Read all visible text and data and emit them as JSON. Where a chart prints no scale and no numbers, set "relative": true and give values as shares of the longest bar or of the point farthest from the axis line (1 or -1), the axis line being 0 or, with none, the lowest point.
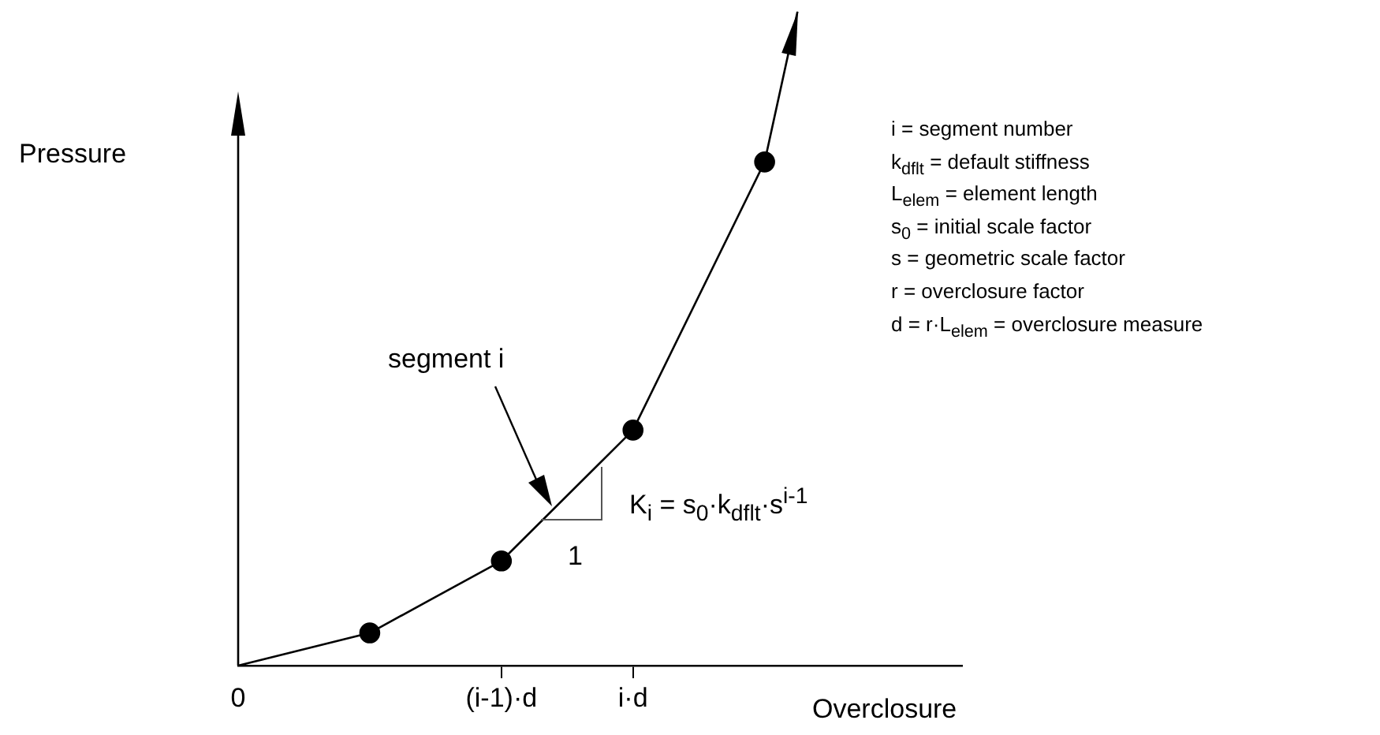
{
  "chart_data": {
    "type": "line",
    "relative": true,
    "categories": [
      "0",
      null,
      null,
      null,
      null,
      null,
      null,
      null,
      "(i-1)·d",
      null,
      null,
      null,
      "i·d",
      null,
      null,
      null,
      null,
      null,
      null,
      null,
      null,
      null,
      null
    ],
    "series": [
      {
        "color": "#000000",
        "values": [
          0,
          null,
          null,
          null,
          0.05,
          null,
          null,
          null,
          0.16,
          null,
          null,
          null,
          0.36,
          null,
          null,
          null,
          0.77,
          1,
          null,
          null,
          null,
          null,
          null
        ]
      }
    ],
    "marker": "circle",
    "line_style": "solid",
    "xlabel": "Overclosure",
    "ylabel": "Pressure",
    "annotations": [
      "segment i",
      "1",
      "K$_{i}$ = s$_{0}$·k$_{dflt}$·s$^{i-1}$",
      "i = segment number",
      "k$_{dflt}$ = default stiffness",
      "L$_{elem}$ = element length",
      "s$_{0}$ = initial scale factor",
      "s = geometric scale factor",
      "r = overclosure factor",
      "d = r·L$_{elem}$ = overclosure measure"
    ]
  }
}
